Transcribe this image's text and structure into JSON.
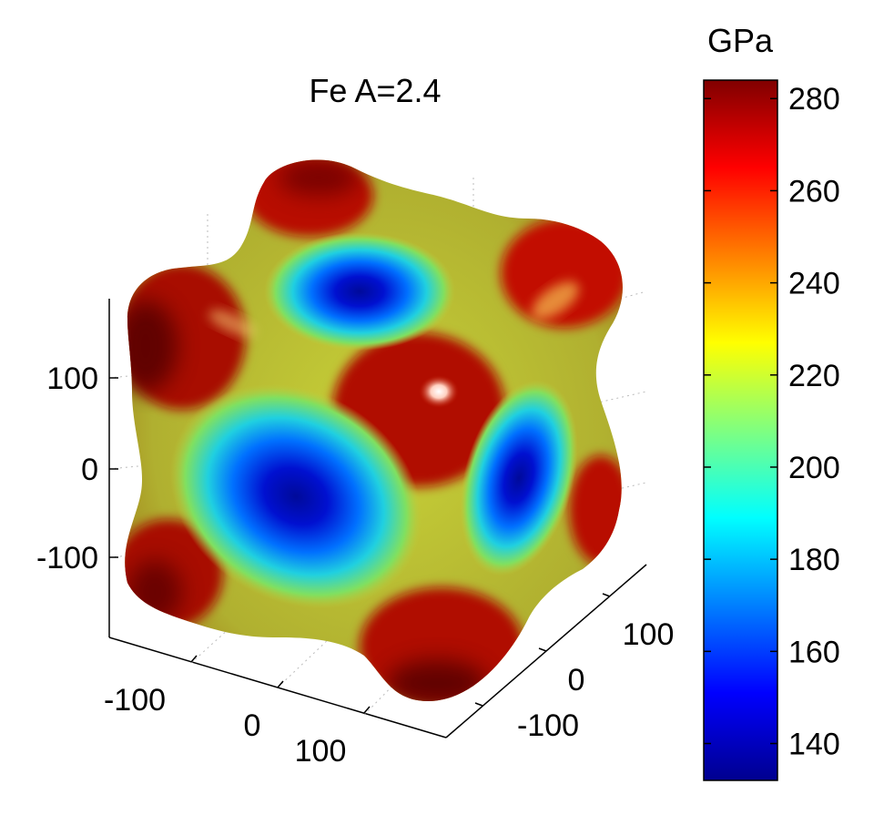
{
  "chart_data": [
    {
      "type": "surface3d",
      "title": "Fe A=2.4",
      "z_axis": {
        "ticks": [
          100,
          0,
          -100
        ],
        "range": [
          -180,
          180
        ]
      },
      "x_axis": {
        "ticks": [
          -100,
          0,
          100
        ]
      },
      "y_axis": {
        "ticks": [
          100,
          0,
          -100
        ]
      },
      "grid": true,
      "shape": "cubic directional elastic modulus surface",
      "value_range": [
        132,
        284
      ]
    },
    {
      "type": "colorbar",
      "unit_label": "GPa",
      "colormap": "jet",
      "range": [
        132,
        284
      ],
      "ticks": [
        280,
        260,
        240,
        220,
        200,
        180,
        160,
        140
      ]
    }
  ]
}
